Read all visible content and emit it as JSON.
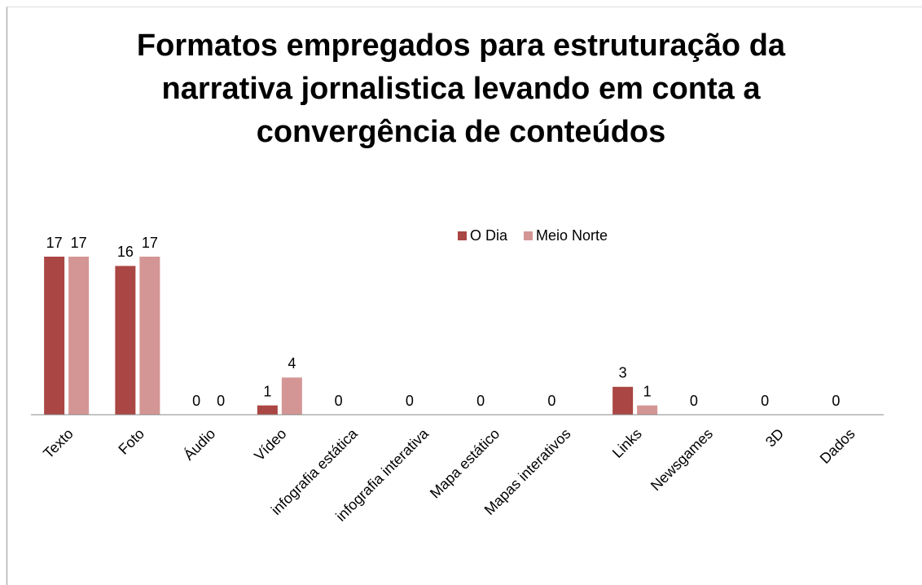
{
  "chart_data": {
    "type": "bar",
    "title": "Formatos empregados para estruturação da narrativa jornalistica levando em conta a convergência de conteúdos",
    "categories": [
      "Texto",
      "Foto",
      "Áudio",
      "Vídeo",
      "infografia estática",
      "infografia interativa",
      "Mapa estático",
      "Mapas interativos",
      "Links",
      "Newsgames",
      "3D",
      "Dados"
    ],
    "series": [
      {
        "name": "O Dia",
        "color": "#aa4643",
        "values": [
          17,
          16,
          0,
          1,
          0,
          0,
          0,
          0,
          3,
          0,
          0,
          0
        ]
      },
      {
        "name": "Meio Norte",
        "color": "#d49695",
        "values": [
          17,
          17,
          0,
          4,
          null,
          null,
          null,
          null,
          1,
          null,
          null,
          null
        ]
      }
    ],
    "ylim": [
      0,
      17
    ]
  }
}
